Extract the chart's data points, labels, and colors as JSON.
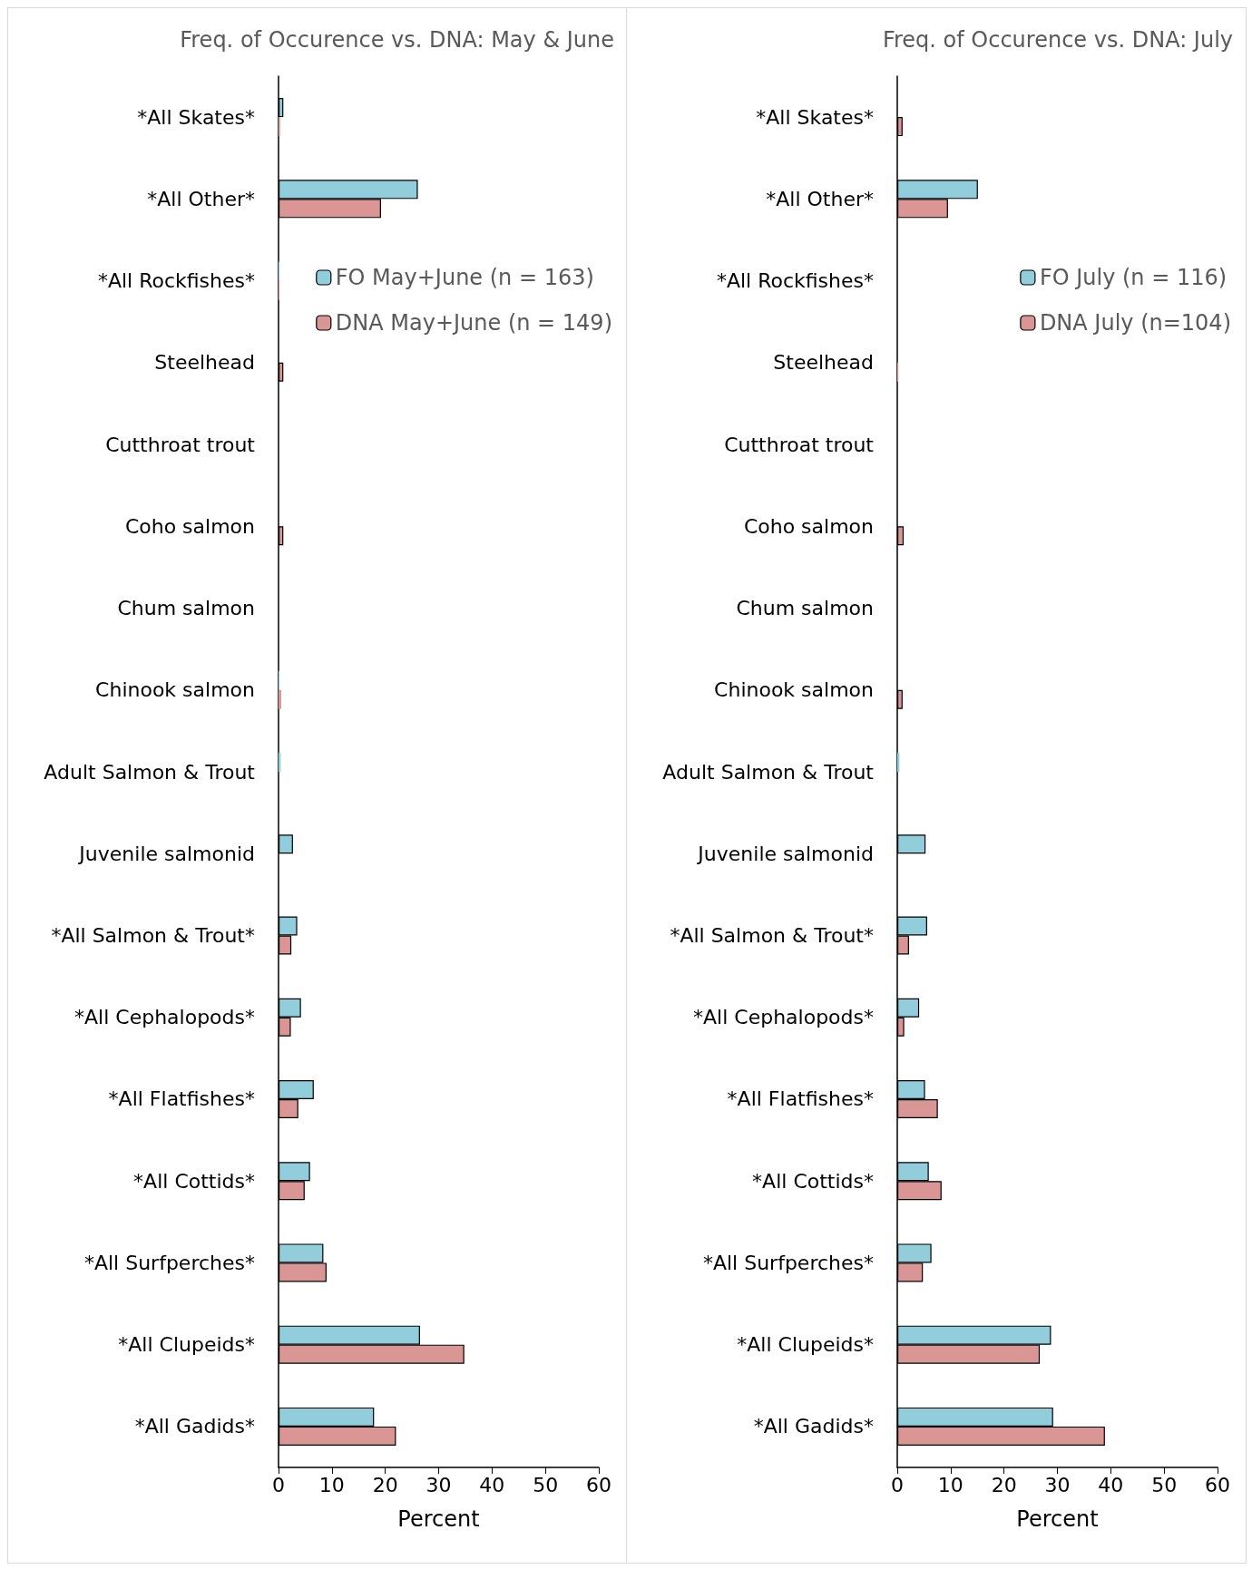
{
  "chart_data": [
    {
      "type": "bar",
      "orientation": "horizontal",
      "title": "Freq. of Occurence vs. DNA: May & June",
      "xlabel": "Percent",
      "categories": [
        "*All Skates*",
        "*All Other*",
        "*All Rockfishes*",
        "Steelhead",
        "Cutthroat trout",
        "Coho salmon",
        "Chum salmon",
        "Chinook salmon",
        "Adult Salmon & Trout",
        "Juvenile salmonid",
        "*All Salmon & Trout*",
        "*All Cephalopods*",
        "*All Flatfishes*",
        "*All Cottids*",
        "*All Surfperches*",
        "*All Clupeids*",
        "*All Gadids*"
      ],
      "series": [
        {
          "name": "FO May+June (n = 163)",
          "color": "#92cddc",
          "values": [
            0.9,
            26.1,
            0.2,
            0,
            0,
            0,
            null,
            0.2,
            0.4,
            2.7,
            3.5,
            4.2,
            6.6,
            5.9,
            8.4,
            26.5,
            17.9
          ]
        },
        {
          "name": "DNA May+June (n = 149)",
          "color": "#d99694",
          "values": [
            0.3,
            19.2,
            0.2,
            0.9,
            0,
            0.9,
            0,
            0.5,
            0,
            0,
            2.4,
            2.3,
            3.7,
            4.9,
            9.0,
            34.8,
            22.0
          ]
        }
      ],
      "xlim": [
        0,
        60
      ],
      "xticks": [
        0,
        10,
        20,
        30,
        40,
        50,
        60
      ],
      "grid": false,
      "legend": "top right"
    },
    {
      "type": "bar",
      "orientation": "horizontal",
      "title": "Freq. of Occurence vs. DNA: July",
      "xlabel": "Percent",
      "categories": [
        "*All Skates*",
        "*All Other*",
        "*All Rockfishes*",
        "Steelhead",
        "Cutthroat trout",
        "Coho salmon",
        "Chum salmon",
        "Chinook salmon",
        "Adult Salmon & Trout",
        "Juvenile salmonid",
        "*All Salmon & Trout*",
        "*All Cephalopods*",
        "*All Flatfishes*",
        "*All Cottids*",
        "*All Surfperches*",
        "*All Clupeids*",
        "*All Gadids*"
      ],
      "series": [
        {
          "name": "FO July (n = 116)",
          "color": "#92cddc",
          "values": [
            0,
            15.1,
            0,
            0,
            0,
            0,
            0,
            0,
            0.4,
            5.3,
            5.6,
            4.1,
            5.2,
            5.9,
            6.4,
            28.8,
            29.2
          ]
        },
        {
          "name": "DNA July (n=104)",
          "color": "#d99694",
          "values": [
            1.0,
            9.5,
            0,
            0.2,
            0,
            1.2,
            null,
            1.0,
            0,
            0,
            2.2,
            1.3,
            7.6,
            8.3,
            4.8,
            26.7,
            38.9
          ]
        }
      ],
      "xlim": [
        0,
        60
      ],
      "xticks": [
        0,
        10,
        20,
        30,
        40,
        50,
        60
      ],
      "grid": false,
      "legend": "top right"
    }
  ]
}
